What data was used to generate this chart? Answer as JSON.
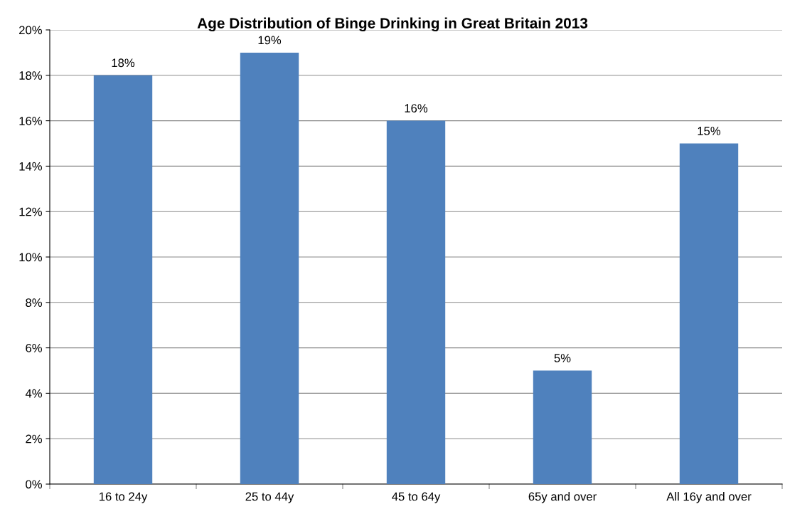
{
  "chart_data": {
    "type": "bar",
    "title": "Age Distribution of Binge Drinking in Great Britain 2013",
    "categories": [
      "16 to 24y",
      "25 to 44y",
      "45 to 64y",
      "65y and over",
      "All 16y and over"
    ],
    "values": [
      18,
      19,
      16,
      5,
      15
    ],
    "color": "#4f81bd",
    "value_labels": [
      "18%",
      "19%",
      "16%",
      "5%",
      "15%"
    ],
    "ylim": [
      0,
      20
    ],
    "yticks": [
      {
        "value": 0,
        "label": "0%"
      },
      {
        "value": 2,
        "label": "2%"
      },
      {
        "value": 4,
        "label": "4%"
      },
      {
        "value": 6,
        "label": "6%"
      },
      {
        "value": 8,
        "label": "8%"
      },
      {
        "value": 10,
        "label": "10%"
      },
      {
        "value": 12,
        "label": "12%"
      },
      {
        "value": 14,
        "label": "14%"
      },
      {
        "value": 16,
        "label": "16%"
      },
      {
        "value": 18,
        "label": "18%"
      },
      {
        "value": 20,
        "label": "20%"
      }
    ],
    "grid": "y",
    "legend": false
  }
}
